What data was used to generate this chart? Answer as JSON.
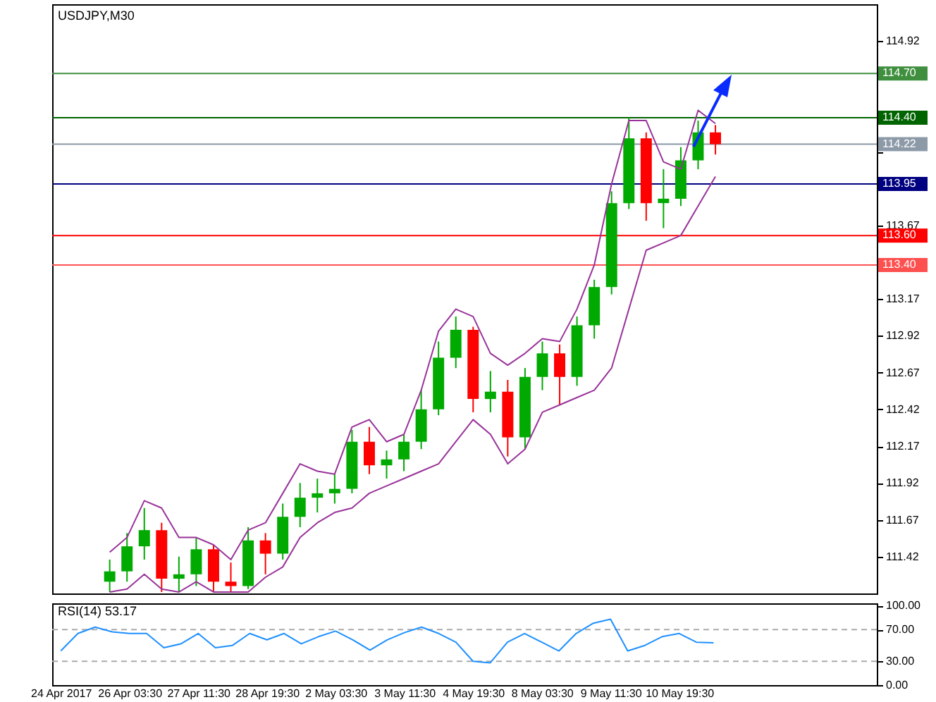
{
  "chart_data": [
    {
      "type": "candlestick",
      "title": "USDJPY,M30",
      "categories": [
        null,
        null,
        null,
        null,
        null,
        null,
        null,
        null,
        null,
        null,
        null,
        null,
        null,
        null,
        null,
        null,
        null,
        null,
        null,
        null,
        null,
        null,
        null,
        null,
        null,
        null,
        null,
        null,
        null,
        null,
        null,
        null,
        null,
        null,
        null,
        null,
        null,
        null,
        null,
        null,
        null,
        null,
        null,
        null,
        null,
        null,
        null,
        null
      ],
      "ohlc": [
        null,
        null,
        null,
        [
          111.25,
          111.4,
          111.18,
          111.32
        ],
        [
          111.32,
          111.58,
          111.25,
          111.49
        ],
        [
          111.49,
          111.75,
          111.4,
          111.6
        ],
        [
          111.6,
          111.65,
          111.18,
          111.27
        ],
        [
          111.27,
          111.42,
          111.18,
          111.3
        ],
        [
          111.3,
          111.55,
          111.22,
          111.47
        ],
        [
          111.47,
          111.5,
          111.18,
          111.25
        ],
        [
          111.25,
          111.38,
          111.18,
          111.22
        ],
        [
          111.22,
          111.62,
          111.2,
          111.53
        ],
        [
          111.53,
          111.58,
          111.3,
          111.44
        ],
        [
          111.44,
          111.78,
          111.4,
          111.69
        ],
        [
          111.69,
          111.92,
          111.62,
          111.82
        ],
        [
          111.82,
          111.95,
          111.72,
          111.85
        ],
        [
          111.85,
          111.98,
          111.78,
          111.88
        ],
        [
          111.88,
          112.28,
          111.85,
          112.2
        ],
        [
          112.2,
          112.3,
          111.98,
          112.04
        ],
        [
          112.04,
          112.14,
          111.95,
          112.08
        ],
        [
          112.08,
          112.25,
          112.0,
          112.2
        ],
        [
          112.2,
          112.55,
          112.15,
          112.42
        ],
        [
          112.42,
          112.88,
          112.38,
          112.77
        ],
        [
          112.77,
          113.05,
          112.7,
          112.96
        ],
        [
          112.96,
          112.98,
          112.4,
          112.49
        ],
        [
          112.49,
          112.68,
          112.4,
          112.54
        ],
        [
          112.54,
          112.62,
          112.1,
          112.23
        ],
        [
          112.23,
          112.7,
          112.15,
          112.64
        ],
        [
          112.64,
          112.88,
          112.55,
          112.8
        ],
        [
          112.8,
          112.86,
          112.45,
          112.64
        ],
        [
          112.64,
          113.05,
          112.58,
          112.99
        ],
        [
          112.99,
          113.3,
          112.9,
          113.25
        ],
        [
          113.25,
          113.9,
          113.2,
          113.82
        ],
        [
          113.82,
          114.4,
          113.78,
          114.26
        ],
        [
          114.26,
          114.3,
          113.7,
          113.82
        ],
        [
          113.82,
          114.05,
          113.65,
          113.85
        ],
        [
          113.85,
          114.2,
          113.8,
          114.11
        ],
        [
          114.11,
          114.38,
          114.05,
          114.3
        ],
        [
          114.3,
          114.35,
          114.15,
          114.22
        ],
        null,
        null,
        null,
        null,
        null,
        null,
        null,
        null,
        null
      ],
      "colors": [
        null,
        null,
        null,
        "#00aa00",
        "#00aa00",
        "#00aa00",
        "#ff0000",
        "#00aa00",
        "#00aa00",
        "#ff0000",
        "#ff0000",
        "#00aa00",
        "#ff0000",
        "#00aa00",
        "#00aa00",
        "#00aa00",
        "#00aa00",
        "#00aa00",
        "#ff0000",
        "#00aa00",
        "#00aa00",
        "#00aa00",
        "#00aa00",
        "#00aa00",
        "#ff0000",
        "#00aa00",
        "#ff0000",
        "#00aa00",
        "#00aa00",
        "#ff0000",
        "#00aa00",
        "#00aa00",
        "#00aa00",
        "#00aa00",
        "#ff0000",
        "#00aa00",
        "#00aa00",
        "#00aa00",
        "#ff0000",
        null,
        null,
        null,
        null,
        null,
        null,
        null,
        null,
        null
      ],
      "series": [
        {
          "type": "line",
          "color": "#993399",
          "values": [
            null,
            null,
            null,
            111.45,
            111.55,
            111.8,
            111.75,
            111.55,
            111.55,
            111.5,
            111.4,
            111.6,
            111.65,
            111.85,
            112.05,
            112.0,
            111.98,
            112.3,
            112.35,
            112.2,
            112.25,
            112.55,
            112.95,
            113.1,
            113.05,
            112.8,
            112.72,
            112.8,
            112.9,
            112.88,
            113.1,
            113.4,
            113.95,
            114.38,
            114.38,
            114.1,
            114.05,
            114.45,
            114.36,
            null,
            null,
            null,
            null,
            null,
            null,
            null,
            null,
            null
          ]
        },
        {
          "type": "line",
          "color": "#993399",
          "values": [
            null,
            null,
            null,
            111.18,
            111.2,
            111.3,
            111.2,
            111.18,
            111.25,
            111.18,
            111.18,
            111.18,
            111.28,
            111.35,
            111.55,
            111.65,
            111.72,
            111.75,
            111.85,
            111.9,
            111.95,
            112.0,
            112.05,
            112.2,
            112.35,
            112.25,
            112.05,
            112.15,
            112.4,
            112.45,
            112.5,
            112.55,
            112.7,
            113.1,
            113.5,
            113.55,
            113.6,
            113.8,
            114.0,
            null,
            null,
            null,
            null,
            null,
            null,
            null,
            null,
            null
          ]
        }
      ],
      "ylim": [
        111.17,
        115.17
      ],
      "yticks": [
        111.42,
        111.67,
        111.92,
        112.17,
        112.42,
        112.67,
        112.92,
        113.17,
        113.67,
        {
          "value": 114.17,
          "label": null
        },
        114.92
      ],
      "ref_lines": [
        {
          "axis": "y",
          "value": 114.7,
          "label": "114.70",
          "color": "#3f8f3f"
        },
        {
          "axis": "y",
          "value": 114.4,
          "label": "114.40",
          "color": "#006400"
        },
        {
          "axis": "y",
          "value": 114.22,
          "label": "114.22",
          "color": "#8c9aa8"
        },
        {
          "axis": "y",
          "value": 113.95,
          "label": "113.95",
          "color": "#000080"
        },
        {
          "axis": "y",
          "value": 113.6,
          "label": "113.60",
          "color": "#ff0000"
        },
        {
          "axis": "y",
          "value": 113.4,
          "label": "113.40",
          "color": "#ff5050"
        }
      ],
      "tick_labels": "y",
      "grid": false
    },
    {
      "type": "line",
      "title": "RSI(14) 53.17",
      "categories": [
        "24 Apr 2017",
        null,
        null,
        null,
        "26 Apr 03:30",
        null,
        null,
        null,
        "27 Apr 11:30",
        null,
        null,
        null,
        "28 Apr 19:30",
        null,
        null,
        null,
        "2 May 03:30",
        null,
        null,
        null,
        "3 May 11:30",
        null,
        null,
        null,
        "4 May 19:30",
        null,
        null,
        null,
        "8 May 03:30",
        null,
        null,
        null,
        "9 May 11:30",
        null,
        null,
        null,
        "10 May 19:30",
        null,
        null,
        null,
        null,
        null,
        null,
        null,
        null,
        null,
        null,
        null
      ],
      "series": [
        {
          "color": "#1e90ff",
          "values": [
            43,
            65,
            73,
            67,
            65,
            65,
            47,
            52,
            65,
            47,
            50,
            65,
            57,
            65,
            52,
            61,
            68,
            57,
            44,
            57,
            66,
            73,
            65,
            54,
            30,
            28,
            54,
            65,
            54,
            43,
            65,
            78,
            83,
            43,
            50,
            61,
            65,
            54,
            53.17,
            null,
            null,
            null,
            null,
            null,
            null,
            null,
            null,
            null
          ]
        }
      ],
      "ylim": [
        0,
        103
      ],
      "yticks": [
        {
          "value": 0,
          "label": "0.00"
        },
        {
          "value": 30,
          "label": "30.00"
        },
        {
          "value": 70,
          "label": "70.00"
        },
        {
          "value": 100,
          "label": "100.00"
        }
      ],
      "ref_lines": [
        {
          "axis": "y",
          "value": 30,
          "color": "#aaaaaa",
          "line_style": "dashed"
        },
        {
          "axis": "y",
          "value": 70,
          "color": "#aaaaaa",
          "line_style": "dashed"
        }
      ],
      "grid": false
    }
  ]
}
